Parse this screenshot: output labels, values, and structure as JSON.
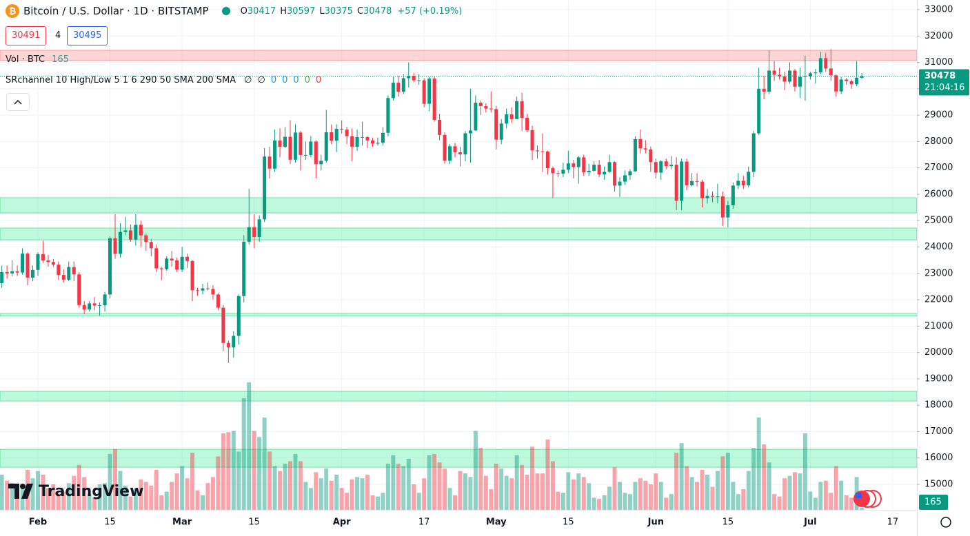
{
  "chart_data": {
    "type": "candlestick",
    "title": "Bitcoin / U.S. Dollar · 1D · BITSTAMP",
    "ohlc_labels": [
      "O",
      "H",
      "L",
      "C"
    ],
    "change": "+57 (+0.19%)",
    "bid": "30491",
    "spread": "4",
    "ask": "30495",
    "volume_label": "Vol · BTC",
    "indicator_label": "SRchannel 10 High/Low 5 1 6 290 50 SMA 200 SMA",
    "indicator_values": [
      {
        "text": "∅",
        "color": "#131722"
      },
      {
        "text": "∅",
        "color": "#131722"
      },
      {
        "text": "0",
        "color": "#2196f3"
      },
      {
        "text": "0",
        "color": "#2196f3"
      },
      {
        "text": "0",
        "color": "#2196f3"
      },
      {
        "text": "0",
        "color": "#4caf50"
      },
      {
        "text": "0",
        "color": "#f23645"
      }
    ],
    "countdown": "21:04:16",
    "logo": "TradingView",
    "up_color": "#089981",
    "down_color": "#f23645",
    "grid": true,
    "xlim": [
      -0.36,
      177.7
    ],
    "ylim": [
      14034,
      33366
    ],
    "yticks": [
      15000,
      16000,
      17000,
      18000,
      19000,
      20000,
      21000,
      22000,
      23000,
      24000,
      25000,
      26000,
      27000,
      28000,
      29000,
      30000,
      31000,
      32000,
      33000
    ],
    "xticks": [
      {
        "value": 7,
        "label": "Feb"
      },
      {
        "value": 21,
        "label": "15"
      },
      {
        "value": 35,
        "label": "Mar"
      },
      {
        "value": 49,
        "label": "15"
      },
      {
        "value": 66,
        "label": "Apr"
      },
      {
        "value": 82,
        "label": "17"
      },
      {
        "value": 96,
        "label": "May"
      },
      {
        "value": 110,
        "label": "15"
      },
      {
        "value": 127,
        "label": "Jun"
      },
      {
        "value": 141,
        "label": "15"
      },
      {
        "value": 157,
        "label": "Jul"
      },
      {
        "value": 173,
        "label": "17"
      }
    ],
    "zones": [
      {
        "from": 31070,
        "to": 31460,
        "color": "rgba(255,82,82,0.25)",
        "edge": "rgba(255,82,82,0.5)"
      },
      {
        "from": 25290,
        "to": 25870,
        "color": "rgba(0,230,118,0.25)",
        "edge": "rgba(0,200,100,0.5)"
      },
      {
        "from": 24270,
        "to": 24720,
        "color": "rgba(0,230,118,0.25)",
        "edge": "rgba(0,200,100,0.5)"
      },
      {
        "from": 21380,
        "to": 21480,
        "color": "rgba(0,230,118,0.25)",
        "edge": "rgba(0,200,100,0.5)"
      },
      {
        "from": 18160,
        "to": 18530,
        "color": "rgba(0,230,118,0.25)",
        "edge": "rgba(0,200,100,0.5)"
      },
      {
        "from": 15650,
        "to": 16330,
        "color": "rgba(0,230,118,0.25)",
        "edge": "rgba(0,200,100,0.5)"
      }
    ],
    "open": [
      22630,
      23050,
      23000,
      23080,
      23030,
      23750,
      22840,
      23130,
      23730,
      23490,
      23430,
      23330,
      22940,
      22760,
      23240,
      22960,
      21800,
      21630,
      21860,
      21780,
      21790,
      22200,
      24330,
      23740,
      24570,
      24630,
      24280,
      24840,
      24440,
      24190,
      23950,
      23190,
      23160,
      23560,
      23490,
      23140,
      23630,
      23470,
      22360,
      22350,
      22430,
      22410,
      22200,
      21700,
      20360,
      20190,
      20630,
      22140,
      24200,
      24750,
      24380,
      25050,
      27430,
      26970,
      28040,
      27800,
      28180,
      27310,
      28340,
      27490,
      27490,
      28000,
      27140,
      27270,
      28350,
      28030,
      28480,
      28450,
      28200,
      27800,
      28170,
      28170,
      28040,
      27920,
      27950,
      28330,
      29650,
      30230,
      29890,
      30400,
      30490,
      30320,
      30320,
      29430,
      30390,
      28820,
      28250,
      27270,
      27820,
      27590,
      27510,
      28310,
      28420,
      29470,
      29340,
      29250,
      29230,
      28070,
      28680,
      29030,
      28850,
      29530,
      28900,
      28430,
      27660,
      27630,
      27620,
      26990,
      26800,
      26780,
      26930,
      27170,
      27030,
      27400,
      26830,
      26890,
      27120,
      26750,
      26850,
      27220,
      26330,
      26480,
      26720,
      26870,
      28090,
      27740,
      27700,
      27220,
      26820,
      27250,
      27070,
      27120,
      25750,
      27240,
      26340,
      26500,
      26480,
      25850,
      25940,
      25900,
      25920,
      25120,
      25580,
      26330,
      26510,
      26340,
      26850,
      28310,
      30000,
      29890,
      30690,
      30530,
      30470,
      30270,
      30690,
      30080,
      30450,
      30470,
      30590,
      30620,
      31160,
      30770,
      30510,
      29900,
      30350,
      30290,
      30170,
      30417
    ],
    "high": [
      23300,
      23300,
      23500,
      23300,
      23950,
      23800,
      23300,
      23800,
      24250,
      23700,
      23550,
      23450,
      23150,
      23450,
      23450,
      23050,
      21950,
      21950,
      22100,
      21900,
      22300,
      24400,
      25250,
      24900,
      25150,
      24850,
      25250,
      25000,
      24500,
      24300,
      24100,
      23250,
      23650,
      23850,
      23600,
      24000,
      23750,
      23500,
      22450,
      22600,
      22650,
      22550,
      22250,
      21800,
      20450,
      20800,
      22200,
      24450,
      26200,
      25250,
      25200,
      27750,
      27800,
      28450,
      28500,
      28550,
      28800,
      28650,
      28400,
      28000,
      28200,
      28050,
      27500,
      29200,
      28650,
      28650,
      28800,
      28550,
      28500,
      28450,
      28750,
      28200,
      28150,
      28150,
      28550,
      29750,
      30450,
      30500,
      30550,
      31000,
      30600,
      30550,
      30400,
      30450,
      30450,
      29050,
      28350,
      27900,
      27950,
      27800,
      28400,
      30000,
      29750,
      29550,
      29450,
      29900,
      29350,
      28850,
      29250,
      29300,
      29700,
      29850,
      29050,
      28600,
      27850,
      28300,
      27650,
      27050,
      26900,
      27200,
      27650,
      27300,
      27450,
      27500,
      27150,
      27250,
      27300,
      27050,
      27500,
      27250,
      26650,
      26900,
      26950,
      28200,
      28450,
      28050,
      27800,
      27350,
      27300,
      27350,
      27450,
      27400,
      27350,
      27350,
      26800,
      26800,
      26550,
      26200,
      26100,
      26400,
      26100,
      25750,
      26450,
      26800,
      26700,
      27050,
      28400,
      30800,
      30500,
      31450,
      31050,
      30800,
      30650,
      31000,
      30750,
      30800,
      31250,
      30650,
      30750,
      31400,
      31350,
      31500,
      30550,
      30450,
      30400,
      30350,
      31050,
      30597
    ],
    "low": [
      22450,
      22800,
      22900,
      22900,
      22950,
      22550,
      22700,
      22900,
      23400,
      23250,
      23250,
      22750,
      22650,
      22700,
      22700,
      21700,
      21450,
      21550,
      21600,
      21400,
      21550,
      22050,
      23550,
      23600,
      24450,
      24200,
      24050,
      24000,
      23850,
      23650,
      23050,
      22750,
      23100,
      23250,
      23050,
      23050,
      23200,
      21950,
      22150,
      22200,
      22350,
      22000,
      21600,
      20050,
      19600,
      19800,
      20300,
      21900,
      24100,
      23950,
      24200,
      24950,
      26600,
      26850,
      27400,
      27750,
      27150,
      27200,
      26900,
      27300,
      27400,
      26600,
      26900,
      27200,
      27900,
      27600,
      28300,
      27900,
      27250,
      27650,
      27850,
      27750,
      27800,
      27850,
      27850,
      28200,
      29550,
      29700,
      29800,
      30050,
      30250,
      30150,
      29300,
      29150,
      28750,
      28050,
      27150,
      27150,
      27400,
      27050,
      27250,
      27200,
      28400,
      29000,
      29100,
      29100,
      27700,
      27900,
      28500,
      28700,
      28850,
      28400,
      28350,
      27300,
      27350,
      26850,
      26750,
      25850,
      26650,
      26650,
      26800,
      26600,
      26400,
      26700,
      26700,
      26850,
      26650,
      26550,
      26800,
      26100,
      25900,
      26350,
      26550,
      26850,
      27550,
      27550,
      26850,
      26600,
      26550,
      26950,
      26950,
      25400,
      25400,
      26150,
      26300,
      26300,
      25500,
      25650,
      25700,
      25650,
      24800,
      24750,
      25450,
      26200,
      26200,
      26250,
      26650,
      28250,
      29600,
      29800,
      30300,
      30350,
      29950,
      30200,
      29900,
      29650,
      29550,
      30350,
      30200,
      30550,
      30650,
      30300,
      29700,
      29800,
      30150,
      30000,
      30100,
      30375
    ],
    "close": [
      23050,
      23000,
      23080,
      23030,
      23750,
      22840,
      23130,
      23730,
      23490,
      23430,
      23330,
      22940,
      22760,
      23240,
      22960,
      21800,
      21630,
      21860,
      21780,
      21790,
      22200,
      24330,
      23740,
      24570,
      24630,
      24280,
      24840,
      24440,
      24190,
      23950,
      23190,
      23160,
      23560,
      23490,
      23140,
      23630,
      23470,
      22360,
      22350,
      22430,
      22410,
      22200,
      21700,
      20360,
      20190,
      20630,
      22140,
      24200,
      24750,
      24380,
      25050,
      27430,
      26970,
      28040,
      27800,
      28180,
      27310,
      28340,
      27490,
      27490,
      28000,
      27140,
      27270,
      28350,
      28030,
      28480,
      28450,
      28200,
      27800,
      28170,
      28170,
      28040,
      27920,
      27950,
      28330,
      29650,
      30230,
      29890,
      30400,
      30490,
      30320,
      30320,
      29430,
      30390,
      28820,
      28250,
      27270,
      27820,
      27590,
      27510,
      28310,
      28420,
      29470,
      29340,
      29250,
      29230,
      28070,
      28680,
      29030,
      28850,
      29530,
      28900,
      28430,
      27660,
      27630,
      27620,
      26990,
      26800,
      26780,
      26930,
      27170,
      27030,
      27400,
      26830,
      26890,
      27120,
      26750,
      26850,
      27220,
      26330,
      26480,
      26720,
      26870,
      28090,
      27740,
      27700,
      27220,
      26820,
      27250,
      27070,
      27120,
      25750,
      27240,
      26340,
      26500,
      26480,
      25850,
      25940,
      25900,
      25920,
      25120,
      25580,
      26330,
      26510,
      26340,
      26850,
      28310,
      30000,
      29890,
      30690,
      30530,
      30470,
      30270,
      30690,
      30080,
      30450,
      30470,
      30590,
      30620,
      31160,
      30770,
      30510,
      29900,
      30350,
      30290,
      30170,
      30420,
      30478
    ],
    "volume": [
      2900,
      2400,
      2200,
      1300,
      2100,
      3300,
      2600,
      3200,
      2900,
      1800,
      2100,
      1200,
      1500,
      2200,
      2800,
      3700,
      2700,
      1300,
      1000,
      2100,
      2200,
      4600,
      5000,
      3200,
      2000,
      1100,
      1800,
      2500,
      2300,
      2000,
      3300,
      1200,
      1500,
      2300,
      3000,
      3600,
      2600,
      4700,
      1600,
      1200,
      2200,
      2700,
      4400,
      6300,
      6400,
      6500,
      4800,
      9200,
      10500,
      6500,
      6000,
      7600,
      4800,
      3600,
      3200,
      3800,
      4000,
      4600,
      4000,
      2300,
      1800,
      3100,
      2600,
      3400,
      2400,
      2900,
      1800,
      1400,
      2500,
      2700,
      2600,
      2900,
      1200,
      1100,
      1400,
      3800,
      4500,
      3800,
      3600,
      4200,
      2100,
      1400,
      2600,
      4500,
      4600,
      3900,
      3400,
      1800,
      1200,
      3200,
      3000,
      2700,
      6500,
      5100,
      2800,
      1700,
      3800,
      3400,
      2800,
      2600,
      4500,
      3700,
      2900,
      5200,
      3000,
      3000,
      5800,
      4000,
      1500,
      1400,
      3100,
      2500,
      3000,
      2700,
      2200,
      1000,
      900,
      1200,
      1900,
      3500,
      2300,
      1400,
      1300,
      2300,
      2600,
      2400,
      2100,
      3000,
      2300,
      1000,
      1300,
      4700,
      5500,
      3600,
      2700,
      2300,
      3300,
      2900,
      1900,
      3200,
      4400,
      4700,
      2300,
      1300,
      1700,
      3200,
      5100,
      7600,
      5400,
      3900,
      1300,
      1100,
      2600,
      2800,
      3100,
      3000,
      6300,
      1500,
      1000,
      2300,
      2400,
      1400,
      3600,
      2400,
      1200,
      1000,
      2700,
      165
    ]
  }
}
